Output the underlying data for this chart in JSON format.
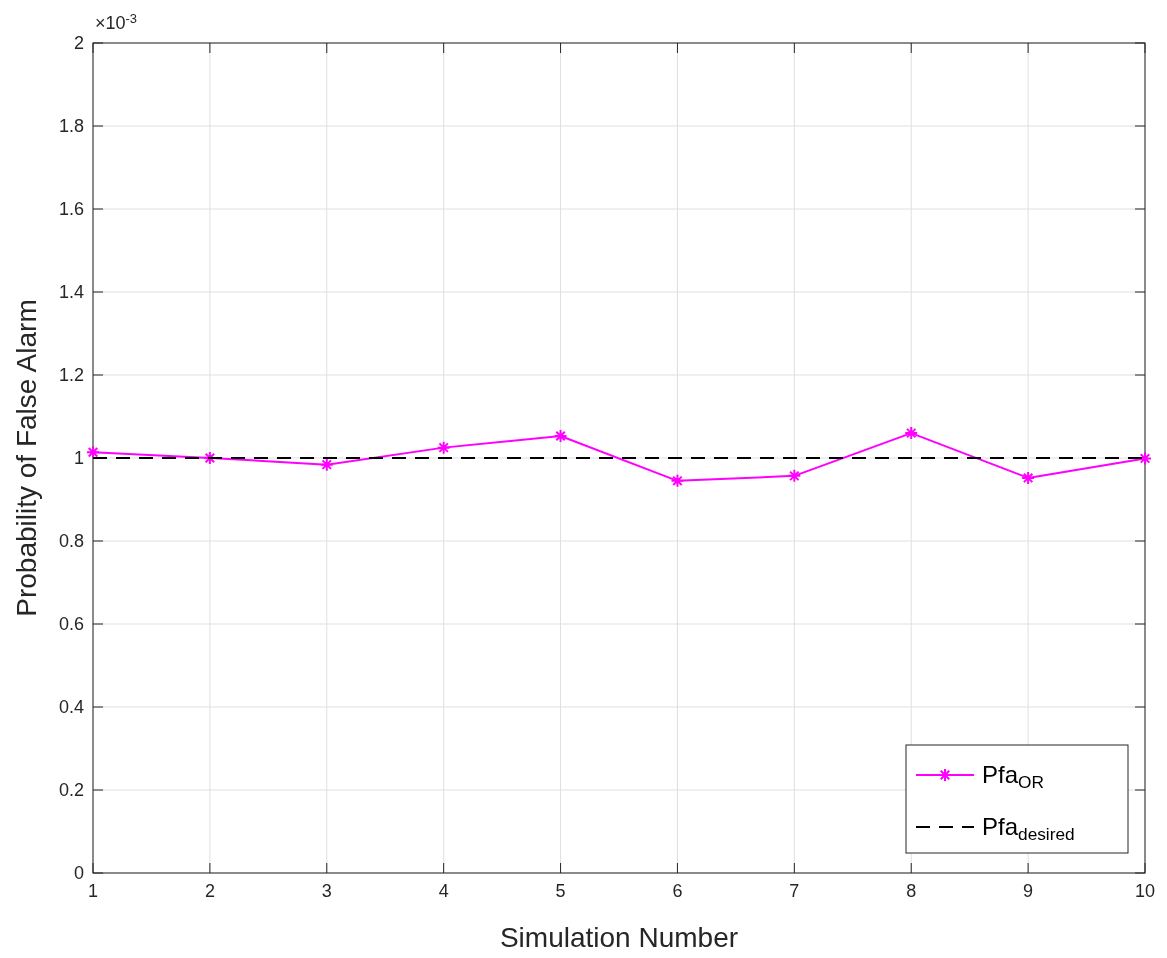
{
  "chart_data": {
    "type": "line",
    "xlabel": "Simulation Number",
    "ylabel": "Probability of False Alarm",
    "annotations": [
      "×10$^{-3}$"
    ],
    "x": [
      1,
      2,
      3,
      4,
      5,
      6,
      7,
      8,
      9,
      10
    ],
    "series": [
      {
        "name": "Pfa$_{OR}$",
        "color": "#ff00ff",
        "marker": "cross",
        "line_style": "solid",
        "values": [
          1.014,
          1.0,
          0.984,
          1.025,
          1.053,
          0.945,
          0.957,
          1.06,
          0.952,
          0.999
        ]
      },
      {
        "name": "Pfa$_{desired}$",
        "color": "#000000",
        "marker": "none",
        "line_style": "dashed",
        "values": [
          1,
          1,
          1,
          1,
          1,
          1,
          1,
          1,
          1,
          1
        ]
      }
    ],
    "xlim": [
      1,
      10
    ],
    "ylim": [
      0,
      2
    ],
    "xticks": [
      1,
      2,
      3,
      4,
      5,
      6,
      7,
      8,
      9,
      10
    ],
    "yticks": [
      0,
      0.2,
      0.4,
      0.6,
      0.8,
      1,
      1.2,
      1.4,
      1.6,
      1.8,
      2
    ],
    "grid": true,
    "legend": "bottom right"
  }
}
